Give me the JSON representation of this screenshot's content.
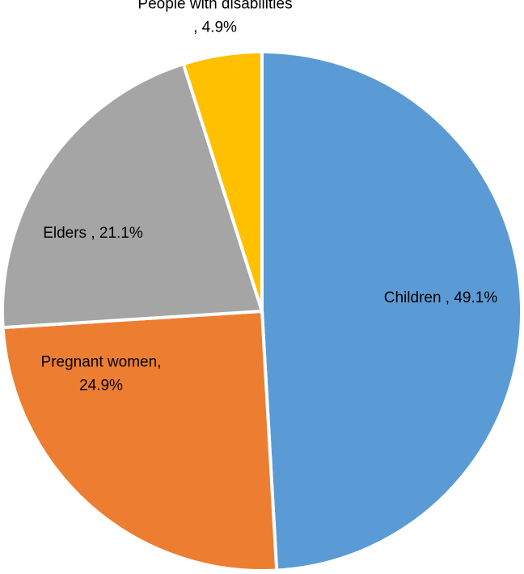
{
  "chart_data": {
    "type": "pie",
    "title": "",
    "slices": [
      {
        "name": "Children",
        "value": 49.1,
        "color": "#5B9BD5",
        "label_lines": [
          "Children , 49.1%"
        ]
      },
      {
        "name": "Pregnant women",
        "value": 24.9,
        "color": "#ED7D31",
        "label_lines": [
          "Pregnant women,",
          "24.9%"
        ]
      },
      {
        "name": "Elders",
        "value": 21.1,
        "color": "#A5A5A5",
        "label_lines": [
          "Elders , 21.1%"
        ]
      },
      {
        "name": "People with disabilities",
        "value": 4.9,
        "color": "#FFC000",
        "label_lines": [
          "People with disabilities",
          ", 4.9%"
        ]
      }
    ],
    "start": "12 o'clock",
    "direction": "clockwise",
    "legend": "none"
  }
}
